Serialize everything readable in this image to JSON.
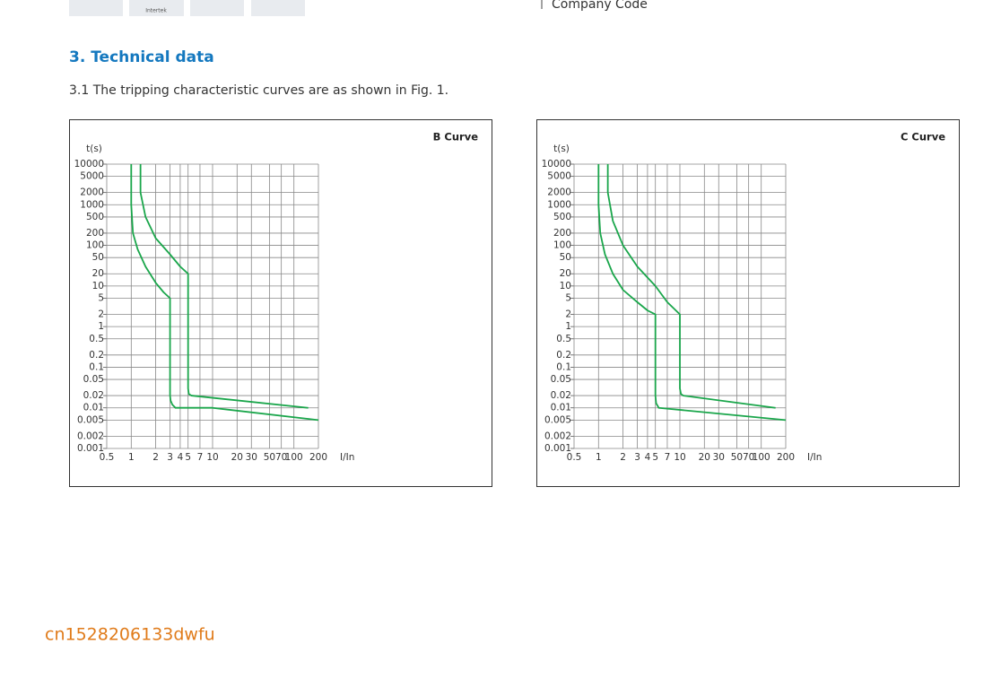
{
  "header": {
    "logo_caption": "Intertek",
    "right_text": "Company Code"
  },
  "section": {
    "heading": "3. Technical data",
    "paragraph": "3.1 The tripping characteristic curves are as shown in Fig. 1."
  },
  "chart_data": [
    {
      "type": "line",
      "title": "B Curve",
      "xlabel": "I/In",
      "ylabel": "t(s)",
      "xscale": "log",
      "yscale": "log",
      "grid": true,
      "xlim": [
        0.5,
        200
      ],
      "ylim": [
        0.001,
        10000
      ],
      "xticks": [
        0.5,
        1,
        2,
        3,
        4,
        5,
        7,
        10,
        20,
        30,
        50,
        70,
        100,
        200
      ],
      "yticks": [
        10000,
        5000,
        2000,
        1000,
        500,
        200,
        100,
        50,
        20,
        10,
        5,
        2,
        1,
        0.5,
        0.2,
        0.1,
        0.05,
        0.02,
        0.01,
        0.005,
        0.002,
        0.001
      ],
      "series": [
        {
          "color": "#1aa64b",
          "x": [
            1,
            1,
            1.05,
            1.2,
            1.5,
            2,
            2.5,
            3,
            3,
            3.05,
            3.2,
            3.5,
            10,
            200
          ],
          "values": [
            10000,
            1000,
            200,
            80,
            30,
            12,
            7,
            5,
            0.02,
            0.015,
            0.012,
            0.01,
            0.01,
            0.005
          ]
        },
        {
          "color": "#1aa64b",
          "x": [
            1.3,
            1.3,
            1.5,
            2,
            3,
            4,
            5,
            5,
            5.1,
            5.5,
            150
          ],
          "values": [
            10000,
            2000,
            500,
            150,
            60,
            30,
            20,
            0.03,
            0.022,
            0.02,
            0.01
          ]
        }
      ]
    },
    {
      "type": "line",
      "title": "C Curve",
      "xlabel": "I/In",
      "ylabel": "t(s)",
      "xscale": "log",
      "yscale": "log",
      "grid": true,
      "xlim": [
        0.5,
        200
      ],
      "ylim": [
        0.001,
        10000
      ],
      "xticks": [
        0.5,
        1,
        2,
        3,
        4,
        5,
        7,
        10,
        20,
        30,
        50,
        70,
        100,
        200
      ],
      "yticks": [
        10000,
        5000,
        2000,
        1000,
        500,
        200,
        100,
        50,
        20,
        10,
        5,
        2,
        1,
        0.5,
        0.2,
        0.1,
        0.05,
        0.02,
        0.01,
        0.005,
        0.002,
        0.001
      ],
      "series": [
        {
          "color": "#1aa64b",
          "x": [
            1,
            1,
            1.05,
            1.2,
            1.5,
            2,
            3,
            4,
            5,
            5,
            5.1,
            5.5,
            200
          ],
          "values": [
            10000,
            1000,
            200,
            60,
            20,
            8,
            4,
            2.5,
            2,
            0.02,
            0.013,
            0.01,
            0.005
          ]
        },
        {
          "color": "#1aa64b",
          "x": [
            1.3,
            1.3,
            1.5,
            2,
            3,
            5,
            7,
            10,
            10,
            10.3,
            11,
            150
          ],
          "values": [
            10000,
            2000,
            400,
            100,
            30,
            10,
            4,
            2,
            0.03,
            0.022,
            0.02,
            0.01
          ]
        }
      ]
    }
  ],
  "watermark": "cn1528206133dwfu"
}
